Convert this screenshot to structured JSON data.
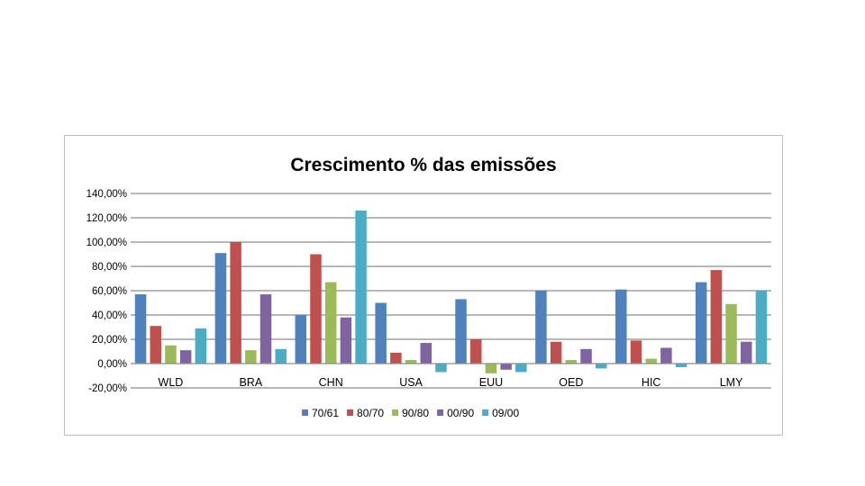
{
  "chart_data": {
    "type": "bar",
    "title": "Crescimento % das emissões",
    "xlabel": "",
    "ylabel": "",
    "ylim": [
      -20,
      140
    ],
    "yticks": [
      "140,00%",
      "120,00%",
      "100,00%",
      "80,00%",
      "60,00%",
      "40,00%",
      "20,00%",
      "0,00%",
      "-20,00%"
    ],
    "ytick_values": [
      140,
      120,
      100,
      80,
      60,
      40,
      20,
      0,
      -20
    ],
    "grid": true,
    "legend_position": "bottom",
    "categories": [
      "WLD",
      "BRA",
      "CHN",
      "USA",
      "EUU",
      "OED",
      "HIC",
      "LMY"
    ],
    "series": [
      {
        "name": "70/61",
        "color": "#4f81bd",
        "values": [
          57,
          91,
          40,
          50,
          53,
          60,
          61,
          67
        ]
      },
      {
        "name": "80/70",
        "color": "#c0504d",
        "values": [
          31,
          100,
          90,
          9,
          20,
          18,
          19,
          77
        ]
      },
      {
        "name": "90/80",
        "color": "#9bbb59",
        "values": [
          15,
          11,
          67,
          3,
          -8,
          3,
          4,
          49
        ]
      },
      {
        "name": "00/90",
        "color": "#8064a2",
        "values": [
          11,
          57,
          38,
          17,
          -5,
          12,
          13,
          18
        ]
      },
      {
        "name": "09/00",
        "color": "#4bacc6",
        "values": [
          29,
          12,
          126,
          -7,
          -7,
          -4,
          -3,
          60
        ]
      }
    ]
  }
}
